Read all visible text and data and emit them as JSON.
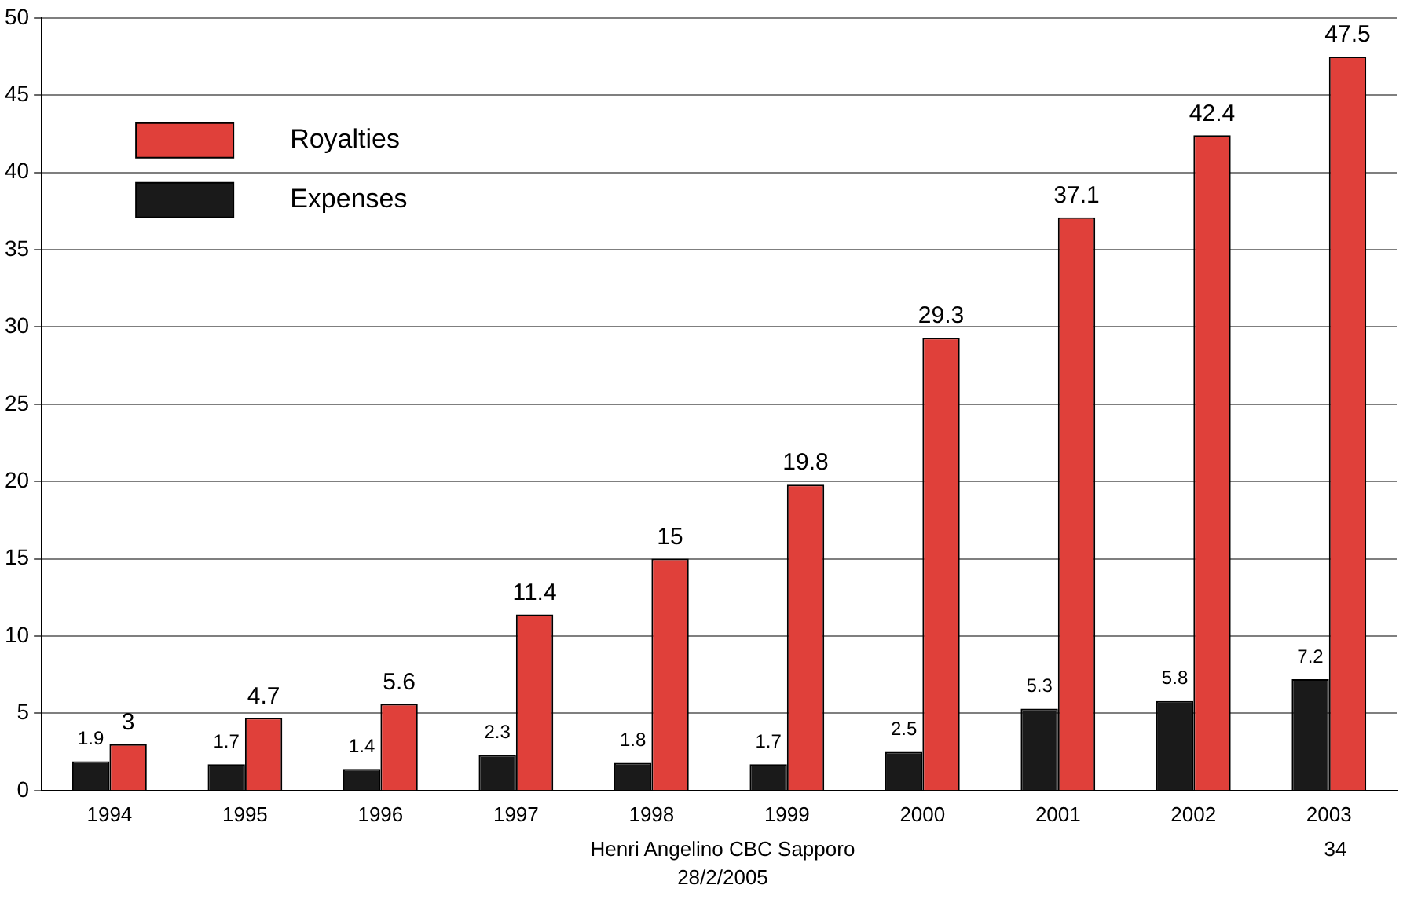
{
  "chart_data": {
    "type": "bar",
    "categories": [
      "1994",
      "1995",
      "1996",
      "1997",
      "1998",
      "1999",
      "2000",
      "2001",
      "2002",
      "2003"
    ],
    "series": [
      {
        "name": "Expenses",
        "color": "#1a1a1a",
        "values": [
          1.9,
          1.7,
          1.4,
          2.3,
          1.8,
          1.7,
          2.5,
          5.3,
          5.8,
          7.2
        ]
      },
      {
        "name": "Royalties",
        "color": "#e0403a",
        "values": [
          3,
          4.7,
          5.6,
          11.4,
          15,
          19.8,
          29.3,
          37.1,
          42.4,
          47.5
        ]
      }
    ],
    "ylim": [
      0,
      50
    ],
    "yticks": [
      0,
      5,
      10,
      15,
      20,
      25,
      30,
      35,
      40,
      45,
      50
    ],
    "grid": "y",
    "legend": "top left",
    "data_labels": true,
    "annotations": [
      "Henri Angelino CBC Sapporo",
      "28/2/2005",
      "34"
    ]
  }
}
